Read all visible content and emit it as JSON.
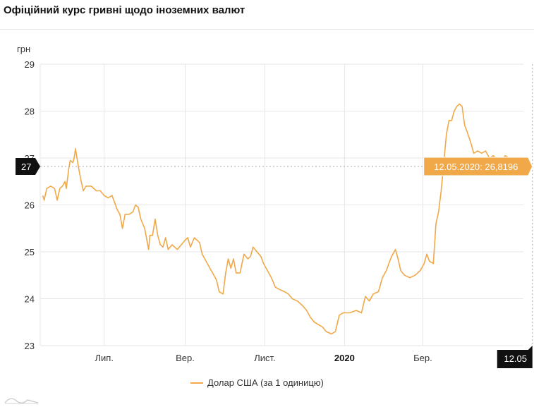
{
  "title": "Офіційний курс гривні щодо іноземних валют",
  "colors": {
    "series": "#f0a848",
    "tooltip_bg": "#f0a848",
    "marker_bg": "#111111",
    "grid": "#e6e6e6"
  },
  "legend_label": "Долар США (за 1 одиницю)",
  "crosshair": {
    "y_label": "27",
    "x_label": "12.05",
    "tooltip": "12.05.2020: 26,8196"
  },
  "chart_data": {
    "type": "line",
    "title": "Офіційний курс гривні щодо іноземних валют",
    "ylabel": "грн",
    "xlabel": "",
    "ylim": [
      23,
      29
    ],
    "xlim": [
      "2019-05-13",
      "2020-05-17"
    ],
    "yticks": [
      23,
      24,
      25,
      26,
      27,
      28,
      29
    ],
    "xticks": [
      {
        "date": "2019-07-01",
        "label": "Лип.",
        "bold": false
      },
      {
        "date": "2019-09-01",
        "label": "Вер.",
        "bold": false
      },
      {
        "date": "2019-11-01",
        "label": "Лист.",
        "bold": false
      },
      {
        "date": "2020-01-01",
        "label": "2020",
        "bold": true
      },
      {
        "date": "2020-03-01",
        "label": "Бер.",
        "bold": false
      }
    ],
    "grid": true,
    "legend_position": "bottom",
    "series": [
      {
        "name": "Долар США (за 1 одиницю)",
        "points": [
          [
            "2019-05-15",
            26.2
          ],
          [
            "2019-05-16",
            26.1
          ],
          [
            "2019-05-18",
            26.35
          ],
          [
            "2019-05-21",
            26.4
          ],
          [
            "2019-05-24",
            26.35
          ],
          [
            "2019-05-26",
            26.1
          ],
          [
            "2019-05-28",
            26.35
          ],
          [
            "2019-05-30",
            26.4
          ],
          [
            "2019-06-01",
            26.5
          ],
          [
            "2019-06-02",
            26.35
          ],
          [
            "2019-06-04",
            26.8
          ],
          [
            "2019-06-05",
            26.95
          ],
          [
            "2019-06-07",
            26.9
          ],
          [
            "2019-06-08",
            27.0
          ],
          [
            "2019-06-09",
            27.2
          ],
          [
            "2019-06-11",
            26.85
          ],
          [
            "2019-06-13",
            26.55
          ],
          [
            "2019-06-15",
            26.3
          ],
          [
            "2019-06-17",
            26.4
          ],
          [
            "2019-06-21",
            26.4
          ],
          [
            "2019-06-25",
            26.3
          ],
          [
            "2019-06-28",
            26.3
          ],
          [
            "2019-07-01",
            26.2
          ],
          [
            "2019-07-04",
            26.15
          ],
          [
            "2019-07-07",
            26.2
          ],
          [
            "2019-07-09",
            26.05
          ],
          [
            "2019-07-11",
            25.9
          ],
          [
            "2019-07-13",
            25.8
          ],
          [
            "2019-07-15",
            25.5
          ],
          [
            "2019-07-17",
            25.8
          ],
          [
            "2019-07-20",
            25.8
          ],
          [
            "2019-07-23",
            25.85
          ],
          [
            "2019-07-25",
            26.0
          ],
          [
            "2019-07-27",
            25.95
          ],
          [
            "2019-07-29",
            25.7
          ],
          [
            "2019-08-01",
            25.5
          ],
          [
            "2019-08-04",
            25.05
          ],
          [
            "2019-08-05",
            25.35
          ],
          [
            "2019-08-07",
            25.35
          ],
          [
            "2019-08-09",
            25.7
          ],
          [
            "2019-08-11",
            25.35
          ],
          [
            "2019-08-13",
            25.15
          ],
          [
            "2019-08-15",
            25.1
          ],
          [
            "2019-08-17",
            25.3
          ],
          [
            "2019-08-19",
            25.05
          ],
          [
            "2019-08-22",
            25.15
          ],
          [
            "2019-08-26",
            25.05
          ],
          [
            "2019-08-29",
            25.15
          ],
          [
            "2019-09-01",
            25.25
          ],
          [
            "2019-09-03",
            25.3
          ],
          [
            "2019-09-05",
            25.1
          ],
          [
            "2019-09-08",
            25.3
          ],
          [
            "2019-09-12",
            25.2
          ],
          [
            "2019-09-14",
            24.95
          ],
          [
            "2019-09-16",
            24.85
          ],
          [
            "2019-09-19",
            24.7
          ],
          [
            "2019-09-22",
            24.55
          ],
          [
            "2019-09-25",
            24.4
          ],
          [
            "2019-09-27",
            24.15
          ],
          [
            "2019-09-30",
            24.1
          ],
          [
            "2019-10-02",
            24.55
          ],
          [
            "2019-10-04",
            24.85
          ],
          [
            "2019-10-06",
            24.65
          ],
          [
            "2019-10-08",
            24.85
          ],
          [
            "2019-10-10",
            24.55
          ],
          [
            "2019-10-13",
            24.55
          ],
          [
            "2019-10-16",
            24.95
          ],
          [
            "2019-10-19",
            24.85
          ],
          [
            "2019-10-21",
            24.9
          ],
          [
            "2019-10-23",
            25.1
          ],
          [
            "2019-10-26",
            25.0
          ],
          [
            "2019-10-29",
            24.9
          ],
          [
            "2019-10-31",
            24.75
          ],
          [
            "2019-11-03",
            24.6
          ],
          [
            "2019-11-06",
            24.45
          ],
          [
            "2019-11-09",
            24.25
          ],
          [
            "2019-11-12",
            24.2
          ],
          [
            "2019-11-16",
            24.15
          ],
          [
            "2019-11-19",
            24.1
          ],
          [
            "2019-11-22",
            24.0
          ],
          [
            "2019-11-26",
            23.95
          ],
          [
            "2019-11-30",
            23.85
          ],
          [
            "2019-12-03",
            23.75
          ],
          [
            "2019-12-06",
            23.6
          ],
          [
            "2019-12-09",
            23.5
          ],
          [
            "2019-12-12",
            23.45
          ],
          [
            "2019-12-15",
            23.4
          ],
          [
            "2019-12-18",
            23.3
          ],
          [
            "2019-12-22",
            23.25
          ],
          [
            "2019-12-25",
            23.3
          ],
          [
            "2019-12-28",
            23.65
          ],
          [
            "2019-12-31",
            23.7
          ],
          [
            "2020-01-05",
            23.7
          ],
          [
            "2020-01-10",
            23.75
          ],
          [
            "2020-01-14",
            23.7
          ],
          [
            "2020-01-17",
            24.05
          ],
          [
            "2020-01-20",
            23.95
          ],
          [
            "2020-01-23",
            24.1
          ],
          [
            "2020-01-27",
            24.15
          ],
          [
            "2020-01-30",
            24.45
          ],
          [
            "2020-02-02",
            24.6
          ],
          [
            "2020-02-04",
            24.75
          ],
          [
            "2020-02-06",
            24.9
          ],
          [
            "2020-02-09",
            25.05
          ],
          [
            "2020-02-11",
            24.85
          ],
          [
            "2020-02-13",
            24.6
          ],
          [
            "2020-02-16",
            24.5
          ],
          [
            "2020-02-20",
            24.45
          ],
          [
            "2020-02-24",
            24.5
          ],
          [
            "2020-02-28",
            24.6
          ],
          [
            "2020-03-02",
            24.75
          ],
          [
            "2020-03-04",
            24.95
          ],
          [
            "2020-03-06",
            24.8
          ],
          [
            "2020-03-09",
            24.75
          ],
          [
            "2020-03-11",
            25.6
          ],
          [
            "2020-03-13",
            25.85
          ],
          [
            "2020-03-15",
            26.3
          ],
          [
            "2020-03-17",
            26.9
          ],
          [
            "2020-03-19",
            27.5
          ],
          [
            "2020-03-21",
            27.8
          ],
          [
            "2020-03-23",
            27.8
          ],
          [
            "2020-03-25",
            28.0
          ],
          [
            "2020-03-27",
            28.1
          ],
          [
            "2020-03-29",
            28.15
          ],
          [
            "2020-03-31",
            28.1
          ],
          [
            "2020-04-02",
            27.7
          ],
          [
            "2020-04-04",
            27.55
          ],
          [
            "2020-04-07",
            27.3
          ],
          [
            "2020-04-09",
            27.1
          ],
          [
            "2020-04-12",
            27.15
          ],
          [
            "2020-04-15",
            27.1
          ],
          [
            "2020-04-18",
            27.15
          ],
          [
            "2020-04-21",
            27.0
          ],
          [
            "2020-04-24",
            27.05
          ],
          [
            "2020-04-27",
            26.95
          ],
          [
            "2020-04-30",
            26.9
          ],
          [
            "2020-05-03",
            27.05
          ],
          [
            "2020-05-06",
            27.0
          ],
          [
            "2020-05-09",
            26.95
          ],
          [
            "2020-05-12",
            26.8196
          ]
        ]
      }
    ]
  }
}
